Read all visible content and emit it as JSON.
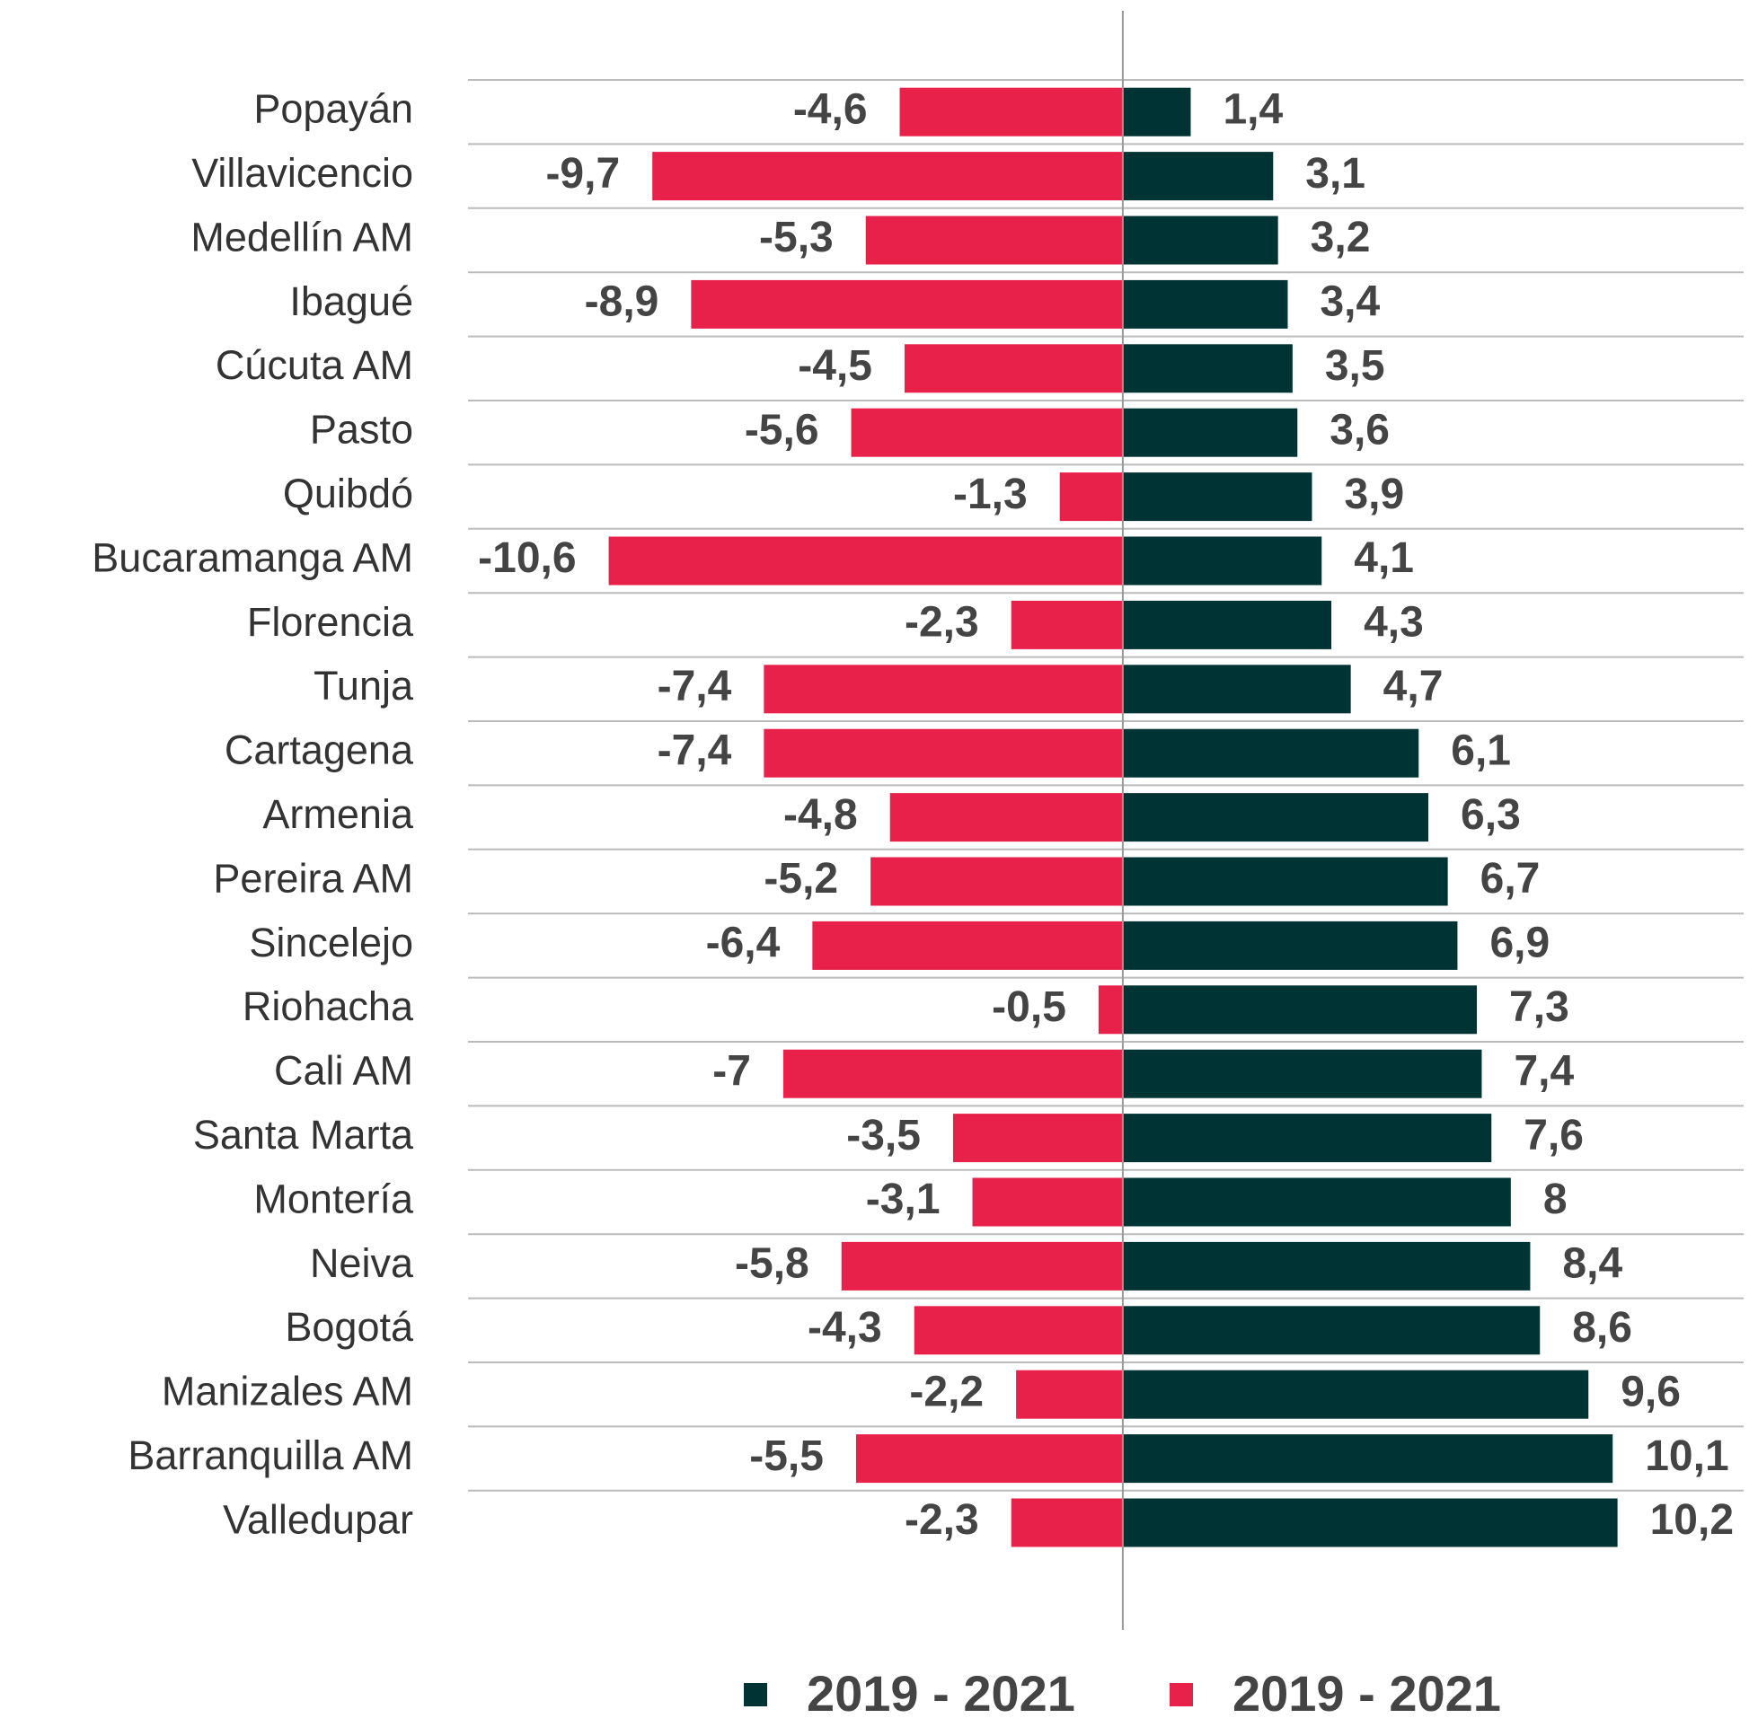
{
  "chart_data": {
    "type": "diverging_bar",
    "categories": [
      "Popayán",
      "Villavicencio",
      "Medellín AM",
      "Ibagué",
      "Cúcuta AM",
      "Pasto",
      "Quibdó",
      "Bucaramanga AM",
      "Florencia",
      "Tunja",
      "Cartagena",
      "Armenia",
      "Pereira AM",
      "Sincelejo",
      "Riohacha",
      "Cali AM",
      "Santa Marta",
      "Montería",
      "Neiva",
      "Bogotá",
      "Manizales AM",
      "Barranquilla AM",
      "Valledupar"
    ],
    "series": [
      {
        "name": "2019 - 2021",
        "color": "#003333",
        "values": [
          1.4,
          3.1,
          3.2,
          3.4,
          3.5,
          3.6,
          3.9,
          4.1,
          4.3,
          4.7,
          6.1,
          6.3,
          6.7,
          6.9,
          7.3,
          7.4,
          7.6,
          8,
          8.4,
          8.6,
          9.6,
          10.1,
          10.2
        ],
        "value_labels": [
          "1,4",
          "3,1",
          "3,2",
          "3,4",
          "3,5",
          "3,6",
          "3,9",
          "4,1",
          "4,3",
          "4,7",
          "6,1",
          "6,3",
          "6,7",
          "6,9",
          "7,3",
          "7,4",
          "7,6",
          "8",
          "8,4",
          "8,6",
          "9,6",
          "10,1",
          "10,2"
        ]
      },
      {
        "name": "2019 - 2021",
        "color": "#e8214a",
        "values": [
          -4.6,
          -9.7,
          -5.3,
          -8.9,
          -4.5,
          -5.6,
          -1.3,
          -10.6,
          -2.3,
          -7.4,
          -7.4,
          -4.8,
          -5.2,
          -6.4,
          -0.5,
          -7,
          -3.5,
          -3.1,
          -5.8,
          -4.3,
          -2.2,
          -5.5,
          -2.3
        ],
        "value_labels": [
          "-4,6",
          "-9,7",
          "-5,3",
          "-8,9",
          "-4,5",
          "-5,6",
          "-1,3",
          "-10,6",
          "-2,3",
          "-7,4",
          "-7,4",
          "-4,8",
          "-5,2",
          "-6,4",
          "-0,5",
          "-7",
          "-3,5",
          "-3,1",
          "-5,8",
          "-4,3",
          "-2,2",
          "-5,5",
          "-2,3"
        ]
      }
    ],
    "xlim": [
      -13.5,
      12.8
    ],
    "grid": true
  }
}
